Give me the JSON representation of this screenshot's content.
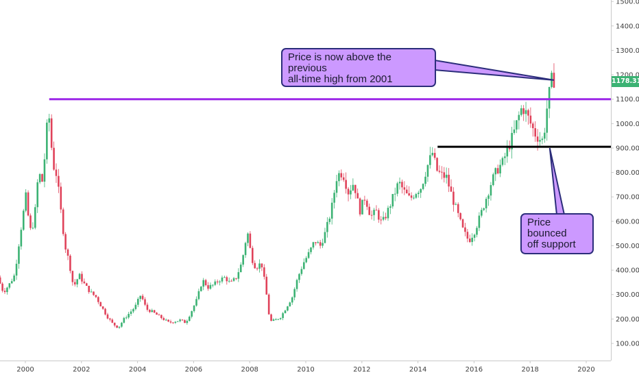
{
  "chart_data": {
    "type": "candlestick",
    "title": "",
    "xlabel": "",
    "ylabel": "",
    "x_ticks": [
      "2000",
      "2002",
      "2004",
      "2006",
      "2008",
      "2010",
      "2012",
      "2014",
      "2016",
      "2018",
      "2020"
    ],
    "y_ticks": [
      "100.00",
      "200.00",
      "300.00",
      "400.00",
      "500.00",
      "600.00",
      "700.00",
      "800.00",
      "900.00",
      "1000.00",
      "1100.00",
      "1200.00",
      "1300.00",
      "1400.00",
      "1500.00"
    ],
    "ylim": [
      60,
      1515
    ],
    "xlim": [
      1999.1,
      2020.9
    ],
    "last_price": "1178.31",
    "levels": [
      {
        "name": "previous all-time high",
        "value": 1100,
        "from": 2000.85,
        "to": 2020.9,
        "color": "#9c27e8"
      },
      {
        "name": "support",
        "value": 905,
        "from": 2014.7,
        "to": 2020.9,
        "color": "#000000"
      }
    ],
    "annotations": [
      {
        "id": "high",
        "text": "Price is now above the previous all-time high from 2001",
        "point": [
          2018.85,
          1178
        ]
      },
      {
        "id": "support",
        "text": "Price bounced off support",
        "point": [
          2018.7,
          900
        ]
      }
    ],
    "price_path": [
      [
        1999.1,
        370
      ],
      [
        1999.3,
        310
      ],
      [
        1999.5,
        340
      ],
      [
        1999.7,
        380
      ],
      [
        1999.9,
        550
      ],
      [
        2000.1,
        700
      ],
      [
        2000.25,
        560
      ],
      [
        2000.4,
        600
      ],
      [
        2000.55,
        800
      ],
      [
        2000.7,
        760
      ],
      [
        2000.85,
        980
      ],
      [
        2000.95,
        1030
      ],
      [
        2001.05,
        840
      ],
      [
        2001.2,
        790
      ],
      [
        2001.35,
        640
      ],
      [
        2001.5,
        500
      ],
      [
        2001.65,
        430
      ],
      [
        2001.8,
        330
      ],
      [
        2002.0,
        380
      ],
      [
        2002.2,
        340
      ],
      [
        2002.4,
        310
      ],
      [
        2002.6,
        290
      ],
      [
        2002.8,
        250
      ],
      [
        2003.0,
        210
      ],
      [
        2003.2,
        180
      ],
      [
        2003.4,
        165
      ],
      [
        2003.6,
        200
      ],
      [
        2003.8,
        225
      ],
      [
        2004.0,
        250
      ],
      [
        2004.2,
        300
      ],
      [
        2004.4,
        240
      ],
      [
        2004.6,
        230
      ],
      [
        2004.8,
        215
      ],
      [
        2005.0,
        200
      ],
      [
        2005.2,
        185
      ],
      [
        2005.4,
        190
      ],
      [
        2005.6,
        195
      ],
      [
        2005.8,
        185
      ],
      [
        2006.0,
        230
      ],
      [
        2006.2,
        280
      ],
      [
        2006.4,
        360
      ],
      [
        2006.6,
        330
      ],
      [
        2006.8,
        340
      ],
      [
        2007.0,
        360
      ],
      [
        2007.2,
        370
      ],
      [
        2007.4,
        345
      ],
      [
        2007.6,
        370
      ],
      [
        2007.8,
        430
      ],
      [
        2008.0,
        560
      ],
      [
        2008.15,
        450
      ],
      [
        2008.3,
        410
      ],
      [
        2008.5,
        430
      ],
      [
        2008.65,
        330
      ],
      [
        2008.8,
        190
      ],
      [
        2009.0,
        195
      ],
      [
        2009.2,
        210
      ],
      [
        2009.4,
        250
      ],
      [
        2009.6,
        290
      ],
      [
        2009.8,
        370
      ],
      [
        2010.0,
        430
      ],
      [
        2010.2,
        470
      ],
      [
        2010.4,
        520
      ],
      [
        2010.6,
        500
      ],
      [
        2010.8,
        560
      ],
      [
        2011.0,
        650
      ],
      [
        2011.2,
        790
      ],
      [
        2011.4,
        800
      ],
      [
        2011.6,
        720
      ],
      [
        2011.8,
        760
      ],
      [
        2012.0,
        640
      ],
      [
        2012.2,
        700
      ],
      [
        2012.4,
        620
      ],
      [
        2012.6,
        640
      ],
      [
        2012.8,
        590
      ],
      [
        2013.0,
        640
      ],
      [
        2013.2,
        700
      ],
      [
        2013.4,
        760
      ],
      [
        2013.6,
        720
      ],
      [
        2013.8,
        690
      ],
      [
        2014.0,
        720
      ],
      [
        2014.2,
        740
      ],
      [
        2014.4,
        820
      ],
      [
        2014.6,
        880
      ],
      [
        2014.75,
        810
      ],
      [
        2014.9,
        790
      ],
      [
        2015.1,
        780
      ],
      [
        2015.3,
        700
      ],
      [
        2015.5,
        630
      ],
      [
        2015.7,
        560
      ],
      [
        2015.9,
        520
      ],
      [
        2016.1,
        560
      ],
      [
        2016.3,
        620
      ],
      [
        2016.5,
        690
      ],
      [
        2016.7,
        760
      ],
      [
        2016.9,
        810
      ],
      [
        2017.1,
        840
      ],
      [
        2017.3,
        900
      ],
      [
        2017.5,
        960
      ],
      [
        2017.65,
        1020
      ],
      [
        2017.8,
        1070
      ],
      [
        2017.95,
        1040
      ],
      [
        2018.1,
        1000
      ],
      [
        2018.25,
        960
      ],
      [
        2018.4,
        940
      ],
      [
        2018.55,
        930
      ],
      [
        2018.7,
        1080
      ],
      [
        2018.85,
        1178
      ]
    ]
  },
  "callouts": {
    "high_text": "Price is now above the previous\nall-time high from 2001",
    "support_text": "Price bounced\noff support"
  },
  "colors": {
    "up": "#3bb273",
    "down": "#e0425a",
    "ath_line": "#9c27e8",
    "support_line": "#000000",
    "callout_fill": "#cc99ff",
    "callout_border": "#2b2d7a"
  }
}
